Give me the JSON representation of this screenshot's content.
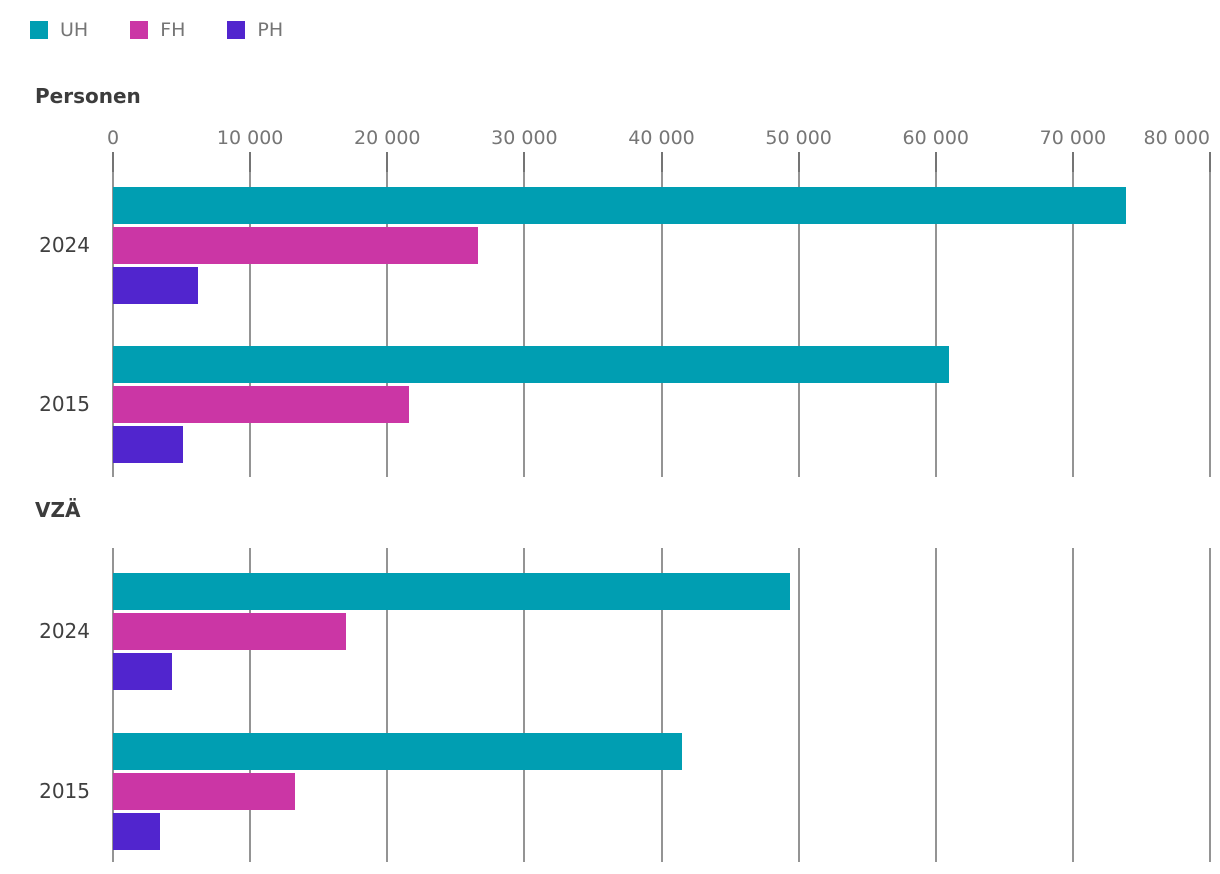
{
  "legend": {
    "items": [
      {
        "label": "UH",
        "color": "#009EB2"
      },
      {
        "label": "FH",
        "color": "#CB36A5"
      },
      {
        "label": "PH",
        "color": "#5125CE"
      }
    ]
  },
  "axis": {
    "min": 0,
    "max": 80000,
    "tick_step": 10000,
    "tick_labels": [
      "0",
      "10 000",
      "20 000",
      "30 000",
      "40 000",
      "50 000",
      "60 000",
      "70 000",
      "80 000"
    ]
  },
  "colors": {
    "uh": "#009EB2",
    "fh": "#CB36A5",
    "ph": "#5125CE",
    "gridline": "#949494",
    "tick": "#747474",
    "axis_text": "#767676",
    "title_text": "#3C3C3C",
    "year_text": "#3F3F3F"
  },
  "chart_data": [
    {
      "type": "bar",
      "orientation": "horizontal",
      "title": "Personen",
      "categories": [
        "2024",
        "2015"
      ],
      "series": [
        {
          "name": "UH",
          "color": "#009EB2",
          "values": [
            73900,
            61000
          ]
        },
        {
          "name": "FH",
          "color": "#CB36A5",
          "values": [
            26600,
            21600
          ]
        },
        {
          "name": "PH",
          "color": "#5125CE",
          "values": [
            6200,
            5100
          ]
        }
      ],
      "xlim": [
        0,
        80000
      ],
      "grid": true,
      "legend_position": "top-left"
    },
    {
      "type": "bar",
      "orientation": "horizontal",
      "title": "VZÄ",
      "categories": [
        "2024",
        "2015"
      ],
      "series": [
        {
          "name": "UH",
          "color": "#009EB2",
          "values": [
            49400,
            41500
          ]
        },
        {
          "name": "FH",
          "color": "#CB36A5",
          "values": [
            17000,
            13300
          ]
        },
        {
          "name": "PH",
          "color": "#5125CE",
          "values": [
            4300,
            3400
          ]
        }
      ],
      "xlim": [
        0,
        80000
      ],
      "grid": true,
      "legend_position": "top-left"
    }
  ]
}
